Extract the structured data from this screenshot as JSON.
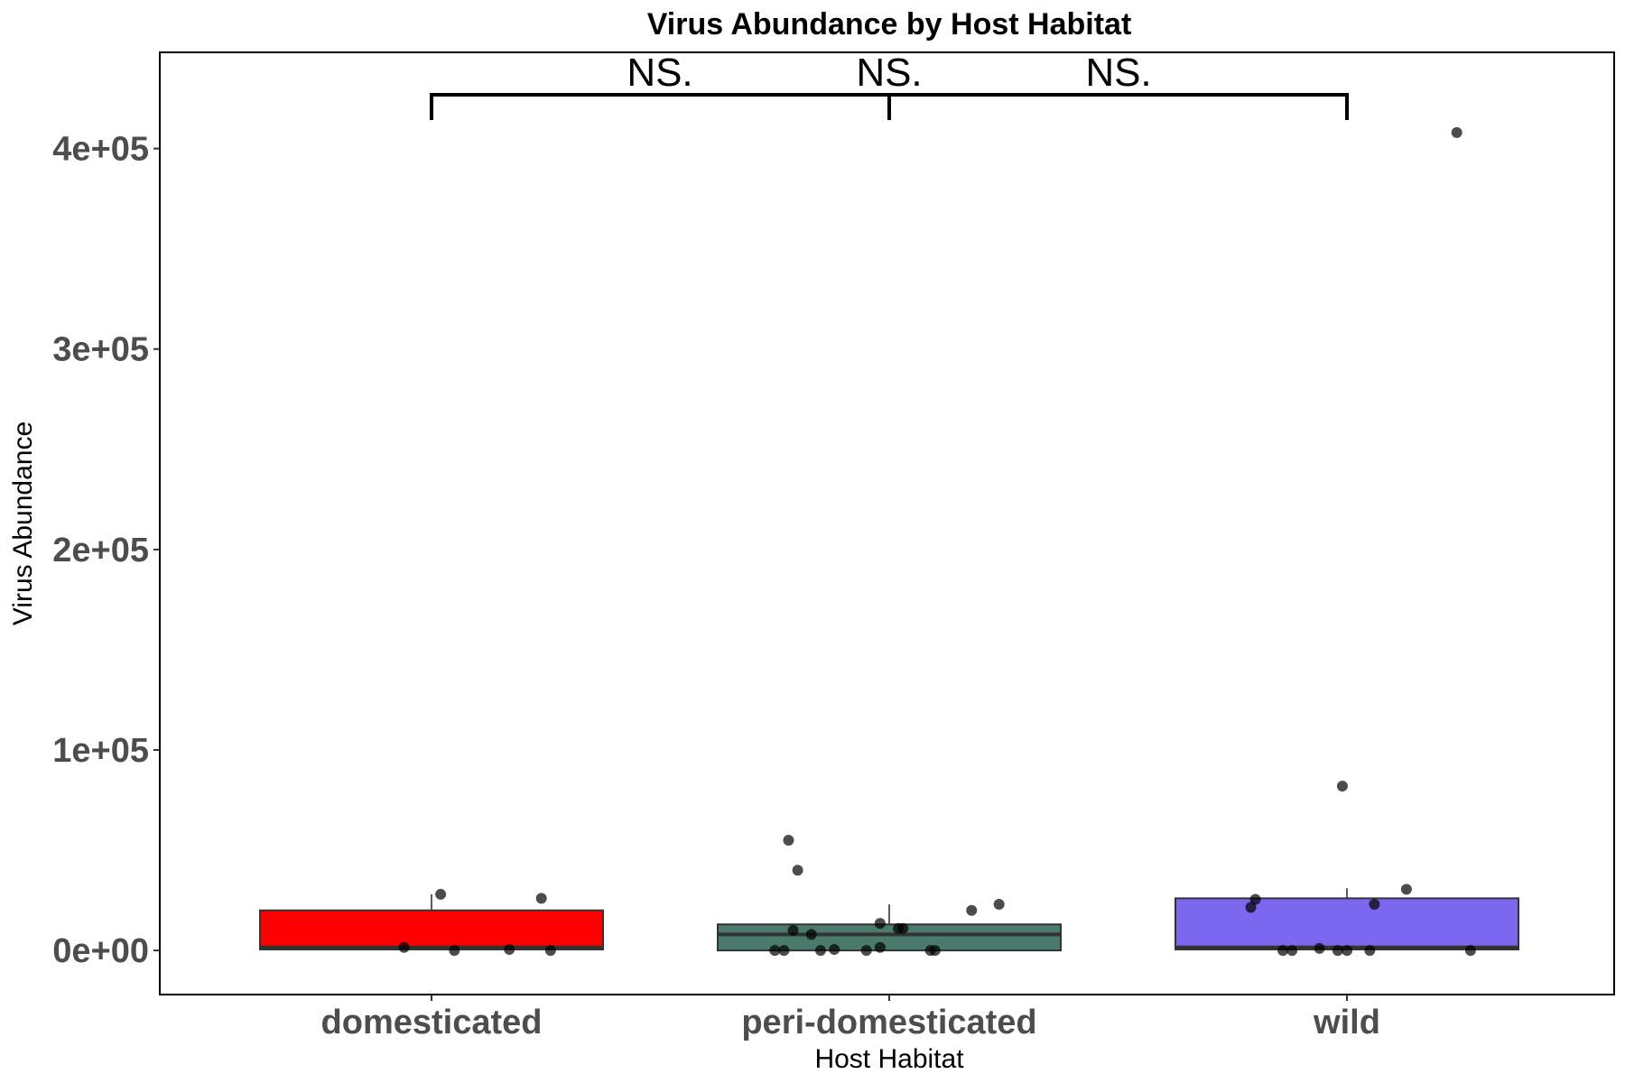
{
  "chart_data": {
    "type": "box",
    "title": "Virus Abundance by Host Habitat",
    "xlabel": "Host Habitat",
    "ylabel": "Virus Abundance",
    "ylim": [
      -22000,
      448000
    ],
    "yticks": [
      0,
      100000,
      200000,
      300000,
      400000
    ],
    "ytick_labels": [
      "0e+00",
      "1e+05",
      "2e+05",
      "3e+05",
      "4e+05"
    ],
    "categories": [
      "domesticated",
      "peri-domesticated",
      "wild"
    ],
    "colors": [
      "#ff0000",
      "#4a7a6c",
      "#7b68ee"
    ],
    "boxes": [
      {
        "category": "domesticated",
        "q1": 500,
        "median": 1500,
        "q3": 20000,
        "whisker_low": 0,
        "whisker_high": 28000
      },
      {
        "category": "peri-domesticated",
        "q1": 0,
        "median": 8000,
        "q3": 13000,
        "whisker_low": 0,
        "whisker_high": 23000
      },
      {
        "category": "wild",
        "q1": 500,
        "median": 1500,
        "q3": 26000,
        "whisker_low": 0,
        "whisker_high": 31000
      }
    ],
    "points": [
      {
        "category": "domesticated",
        "jitter": 0.02,
        "value": 28000
      },
      {
        "category": "domesticated",
        "jitter": 0.24,
        "value": 26000
      },
      {
        "category": "domesticated",
        "jitter": -0.06,
        "value": 1500
      },
      {
        "category": "domesticated",
        "jitter": 0.05,
        "value": 0
      },
      {
        "category": "domesticated",
        "jitter": 0.17,
        "value": 500
      },
      {
        "category": "domesticated",
        "jitter": 0.26,
        "value": 0
      },
      {
        "category": "peri-domesticated",
        "jitter": -0.22,
        "value": 55000
      },
      {
        "category": "peri-domesticated",
        "jitter": -0.2,
        "value": 40000
      },
      {
        "category": "peri-domesticated",
        "jitter": 0.24,
        "value": 23000
      },
      {
        "category": "peri-domesticated",
        "jitter": 0.18,
        "value": 20000
      },
      {
        "category": "peri-domesticated",
        "jitter": -0.02,
        "value": 13500
      },
      {
        "category": "peri-domesticated",
        "jitter": 0.02,
        "value": 11000
      },
      {
        "category": "peri-domesticated",
        "jitter": 0.03,
        "value": 11000
      },
      {
        "category": "peri-domesticated",
        "jitter": -0.21,
        "value": 10000
      },
      {
        "category": "peri-domesticated",
        "jitter": -0.17,
        "value": 8000
      },
      {
        "category": "peri-domesticated",
        "jitter": -0.25,
        "value": 0
      },
      {
        "category": "peri-domesticated",
        "jitter": -0.23,
        "value": 0
      },
      {
        "category": "peri-domesticated",
        "jitter": -0.15,
        "value": 0
      },
      {
        "category": "peri-domesticated",
        "jitter": -0.12,
        "value": 500
      },
      {
        "category": "peri-domesticated",
        "jitter": -0.05,
        "value": 0
      },
      {
        "category": "peri-domesticated",
        "jitter": -0.02,
        "value": 1500
      },
      {
        "category": "peri-domesticated",
        "jitter": 0.09,
        "value": 0
      },
      {
        "category": "peri-domesticated",
        "jitter": 0.1,
        "value": 0
      },
      {
        "category": "wild",
        "jitter": 0.24,
        "value": 408000
      },
      {
        "category": "wild",
        "jitter": -0.01,
        "value": 82000
      },
      {
        "category": "wild",
        "jitter": 0.13,
        "value": 30500
      },
      {
        "category": "wild",
        "jitter": -0.2,
        "value": 25500
      },
      {
        "category": "wild",
        "jitter": 0.06,
        "value": 23000
      },
      {
        "category": "wild",
        "jitter": -0.21,
        "value": 21500
      },
      {
        "category": "wild",
        "jitter": -0.14,
        "value": 0
      },
      {
        "category": "wild",
        "jitter": -0.12,
        "value": 0
      },
      {
        "category": "wild",
        "jitter": -0.06,
        "value": 1000
      },
      {
        "category": "wild",
        "jitter": -0.02,
        "value": 0
      },
      {
        "category": "wild",
        "jitter": 0.0,
        "value": 0
      },
      {
        "category": "wild",
        "jitter": 0.05,
        "value": 0
      },
      {
        "category": "wild",
        "jitter": 0.27,
        "value": 0
      }
    ],
    "significance": [
      {
        "from": "domesticated",
        "to": "peri-domesticated",
        "label": "NS."
      },
      {
        "from": "domesticated",
        "to": "wild",
        "label": "NS."
      },
      {
        "from": "peri-domesticated",
        "to": "wild",
        "label": "NS."
      }
    ],
    "grid": false,
    "legend": "none"
  }
}
